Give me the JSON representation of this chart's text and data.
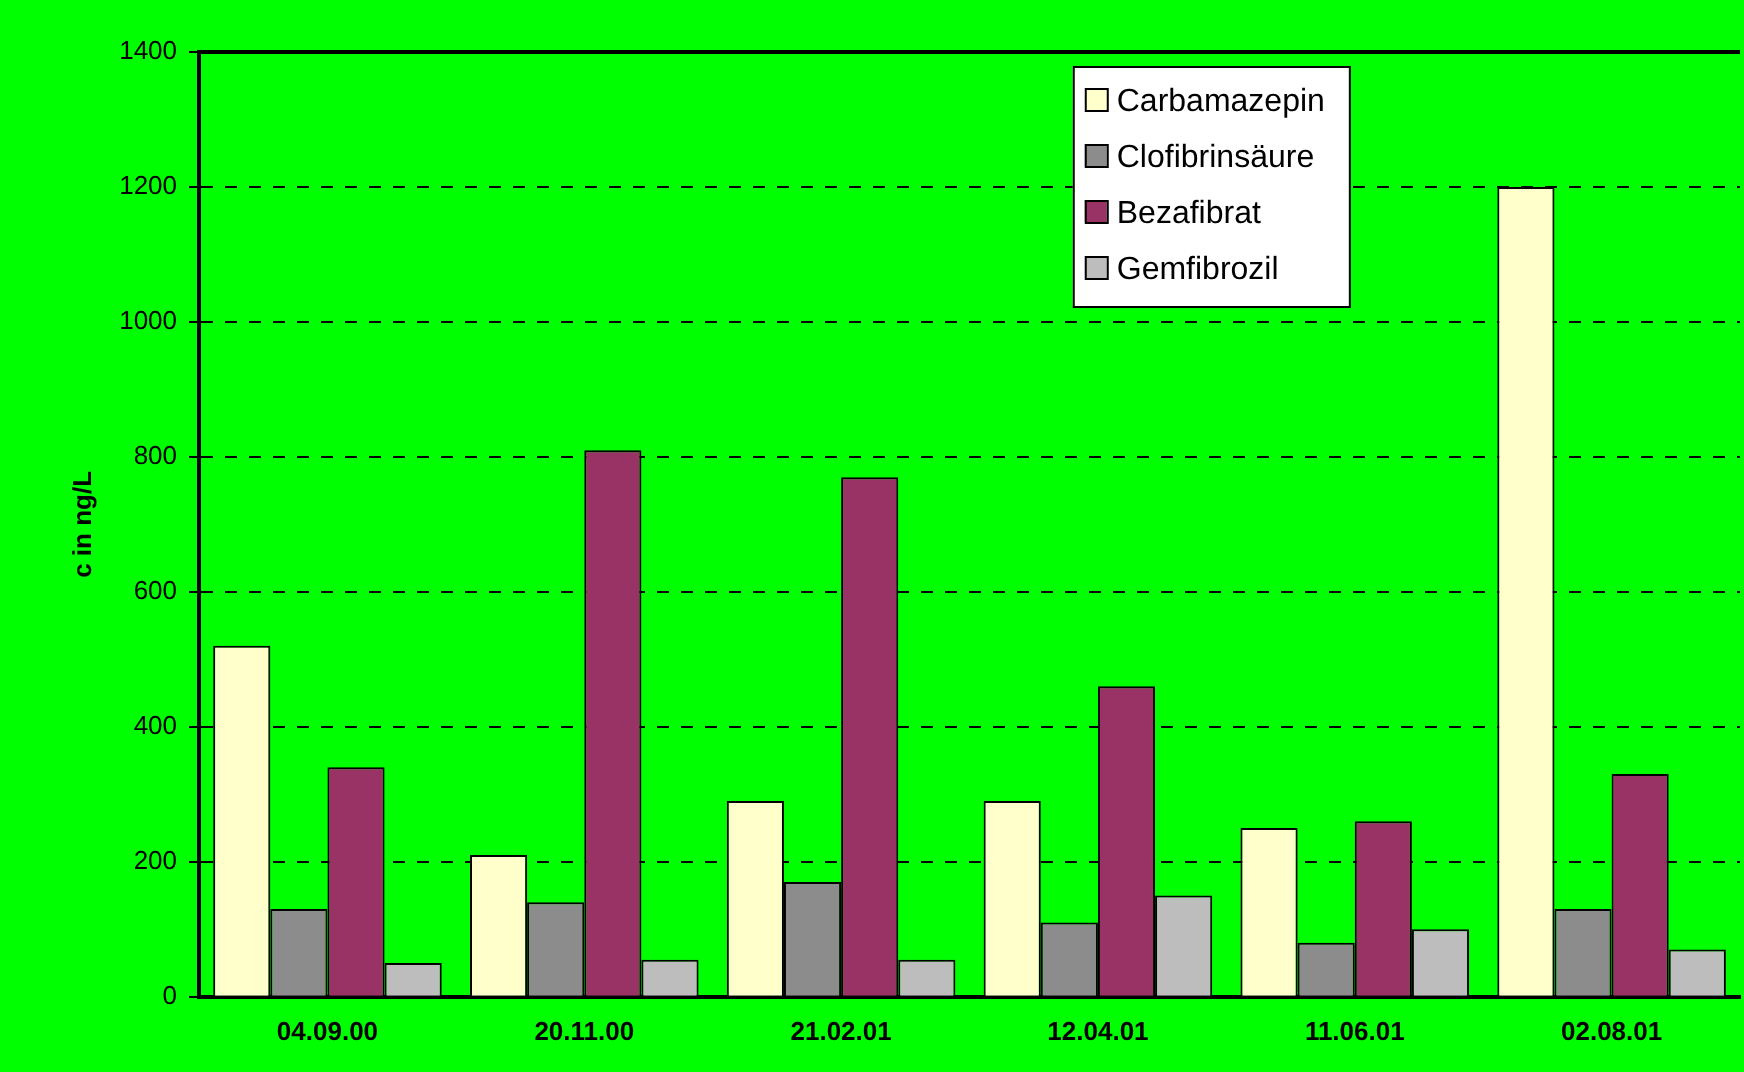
{
  "chart_data": {
    "type": "bar",
    "ylabel": "c in ng/L",
    "categories": [
      "04.09.00",
      "20.11.00",
      "21.02.01",
      "12.04.01",
      "11.06.01",
      "02.08.01"
    ],
    "series": [
      {
        "name": "Carbamazepin",
        "color": "#ffffcc",
        "values": [
          520,
          210,
          290,
          290,
          250,
          1200
        ]
      },
      {
        "name": "Clofibrinsäure",
        "color": "#8c8c8c",
        "values": [
          130,
          140,
          170,
          110,
          80,
          130
        ]
      },
      {
        "name": "Bezafibrat",
        "color": "#993366",
        "values": [
          340,
          810,
          770,
          460,
          260,
          330
        ]
      },
      {
        "name": "Gemfibrozil",
        "color": "#bdbdbd",
        "values": [
          50,
          55,
          55,
          150,
          100,
          70
        ]
      }
    ],
    "ylim": [
      0,
      1400
    ],
    "yticks": [
      0,
      200,
      400,
      600,
      800,
      1000,
      1200,
      1400
    ],
    "grid": "y",
    "legend": "top right"
  }
}
